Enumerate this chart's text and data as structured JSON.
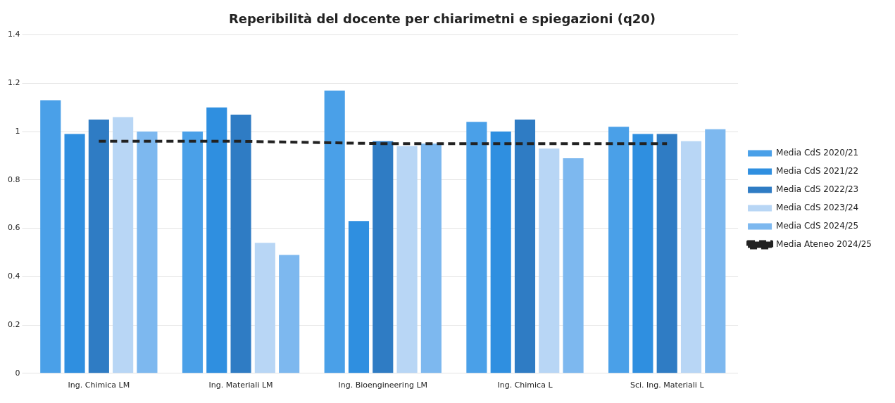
{
  "chart_data": {
    "type": "bar",
    "title": "Reperibilità del docente per chiarimetni e spiegazioni (q20)",
    "categories": [
      "Ing. Chimica LM",
      "Ing. Materiali LM",
      "Ing. Bioengineering LM",
      "Ing. Chimica L",
      "Sci. Ing. Materiali L"
    ],
    "series": [
      {
        "name": "Media CdS 2020/21",
        "color": "#4aa0e8",
        "values": [
          1.13,
          1.0,
          1.17,
          1.04,
          1.02
        ]
      },
      {
        "name": "Media CdS 2021/22",
        "color": "#2f8fe0",
        "values": [
          0.99,
          1.1,
          0.63,
          1.0,
          0.99
        ]
      },
      {
        "name": "Media CdS 2022/23",
        "color": "#2f7cc4",
        "values": [
          1.05,
          1.07,
          0.96,
          1.05,
          0.99
        ]
      },
      {
        "name": "Media CdS 2023/24",
        "color": "#b8d6f5",
        "values": [
          1.06,
          0.54,
          0.94,
          0.93,
          0.96
        ]
      },
      {
        "name": "Media CdS 2024/25",
        "color": "#7db8ef",
        "values": [
          1.0,
          0.49,
          0.95,
          0.89,
          1.01
        ]
      },
      {
        "name": "Media Ateneo 2024/25",
        "type": "line",
        "line_style": "dashed",
        "color": "#222222",
        "values": [
          0.96,
          0.96,
          0.95,
          0.95,
          0.95
        ]
      }
    ],
    "ylim": [
      0,
      1.4
    ],
    "yticks": [
      0,
      0.2,
      0.4,
      0.6,
      0.8,
      1,
      1.2,
      1.4
    ],
    "grid": "y",
    "legend": "right"
  }
}
